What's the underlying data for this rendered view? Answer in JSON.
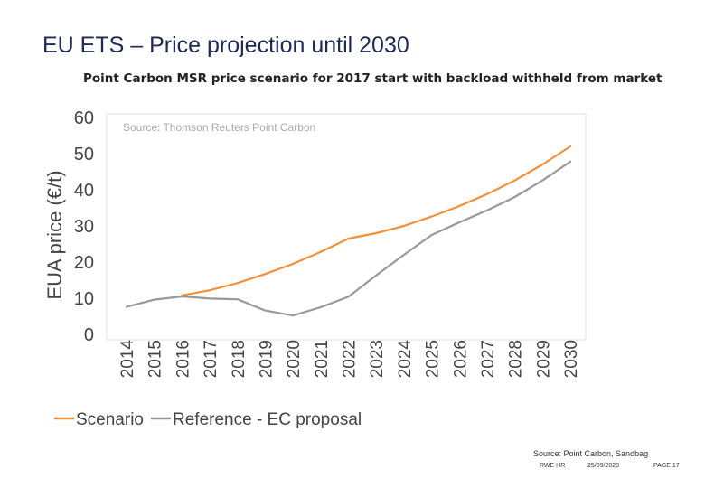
{
  "slide": {
    "title": "EU ETS – Price projection until 2030"
  },
  "chart_data": {
    "type": "line",
    "title": "Point Carbon MSR price scenario for 2017 start with backload withheld from market",
    "source_note": "Source: Thomson Reuters Point Carbon",
    "xlabel": "",
    "ylabel": "EUA price (€/t)",
    "ylim": [
      0,
      60
    ],
    "yticks": [
      0,
      10,
      20,
      30,
      40,
      50,
      60
    ],
    "x": [
      "2014",
      "2015",
      "2016",
      "2017",
      "2018",
      "2019",
      "2020",
      "2021",
      "2022",
      "2023",
      "2024",
      "2025",
      "2026",
      "2027",
      "2028",
      "2029",
      "2030"
    ],
    "grid": false,
    "legend_position": "bottom",
    "series": [
      {
        "name": "Scenario",
        "color": "#f0913a",
        "values": [
          null,
          null,
          10.8,
          12.2,
          14.2,
          16.7,
          19.5,
          22.8,
          26.5,
          28.0,
          30.0,
          32.6,
          35.5,
          38.8,
          42.6,
          47.0,
          52.0
        ]
      },
      {
        "name": "Reference - EC proposal",
        "color": "#999999",
        "values": [
          7.6,
          9.6,
          10.5,
          9.9,
          9.7,
          6.6,
          5.2,
          7.5,
          10.4,
          16.3,
          22.0,
          27.5,
          31.0,
          34.3,
          38.0,
          42.6,
          47.8
        ]
      }
    ]
  },
  "footer": {
    "source": "Source: Point Carbon, Sandbag",
    "org": "RWE HR",
    "date": "25/09/2020",
    "page": "PAGE 17"
  }
}
